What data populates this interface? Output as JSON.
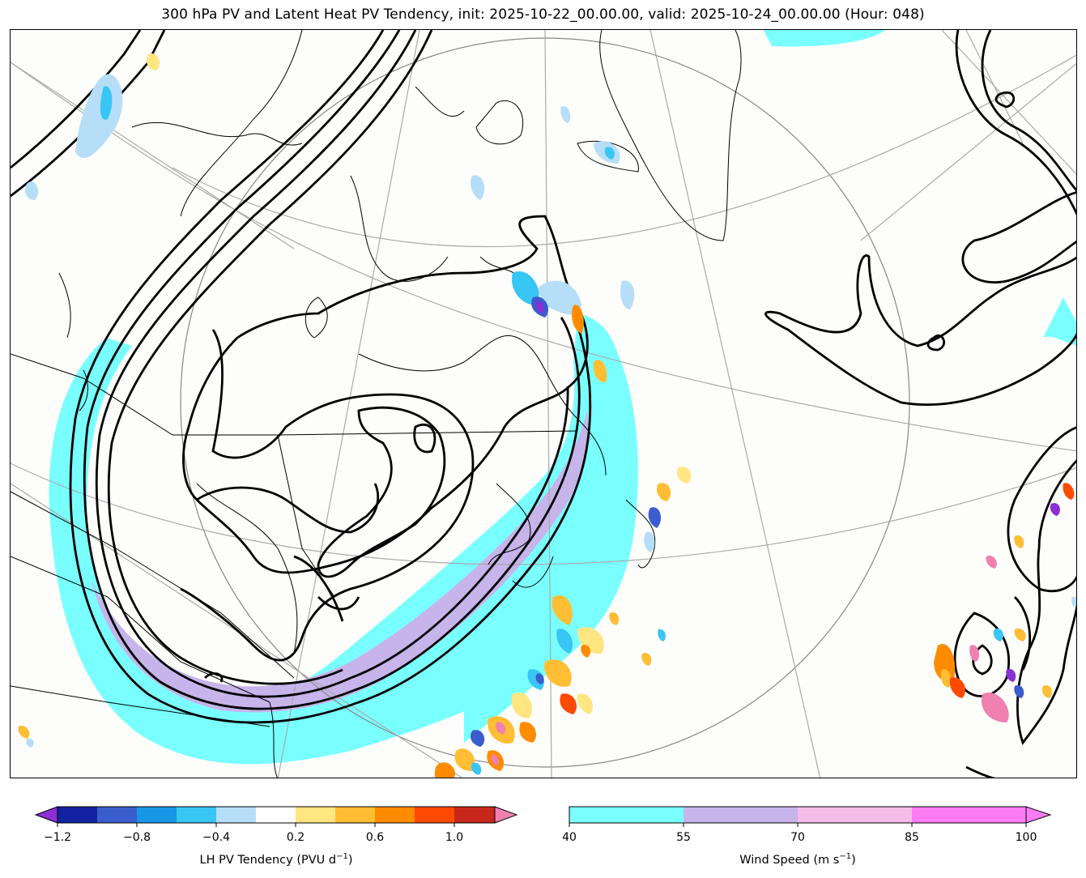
{
  "title": "300 hPa PV and Latent Heat PV Tendency, init: 2025-10-22_00.00.00, valid: 2025-10-24_00.00.00 (Hour: 048)",
  "colorbar_left": {
    "label_main": "LH PV Tendency (PVU d",
    "label_sup": "−1",
    "label_end": ")",
    "ticks": [
      "−1.2",
      "−0.8",
      "−0.4",
      "0.2",
      "0.6",
      "1.0"
    ],
    "colors": [
      "#8b2fd6",
      "#1222a0",
      "#3a5ccc",
      "#1896e6",
      "#38c6f4",
      "#b6def8",
      "#ffffff",
      "#ffe680",
      "#ffbe33",
      "#ff8c00",
      "#ff4a00",
      "#c8281c",
      "#f080b0"
    ]
  },
  "colorbar_right": {
    "label_main": "Wind Speed (m s",
    "label_sup": "−1",
    "label_end": ")",
    "ticks": [
      "40",
      "55",
      "70",
      "85",
      "100"
    ],
    "colors": [
      "#7affff",
      "#c6b4ea",
      "#f4bce6",
      "#ff7cf4"
    ]
  }
}
